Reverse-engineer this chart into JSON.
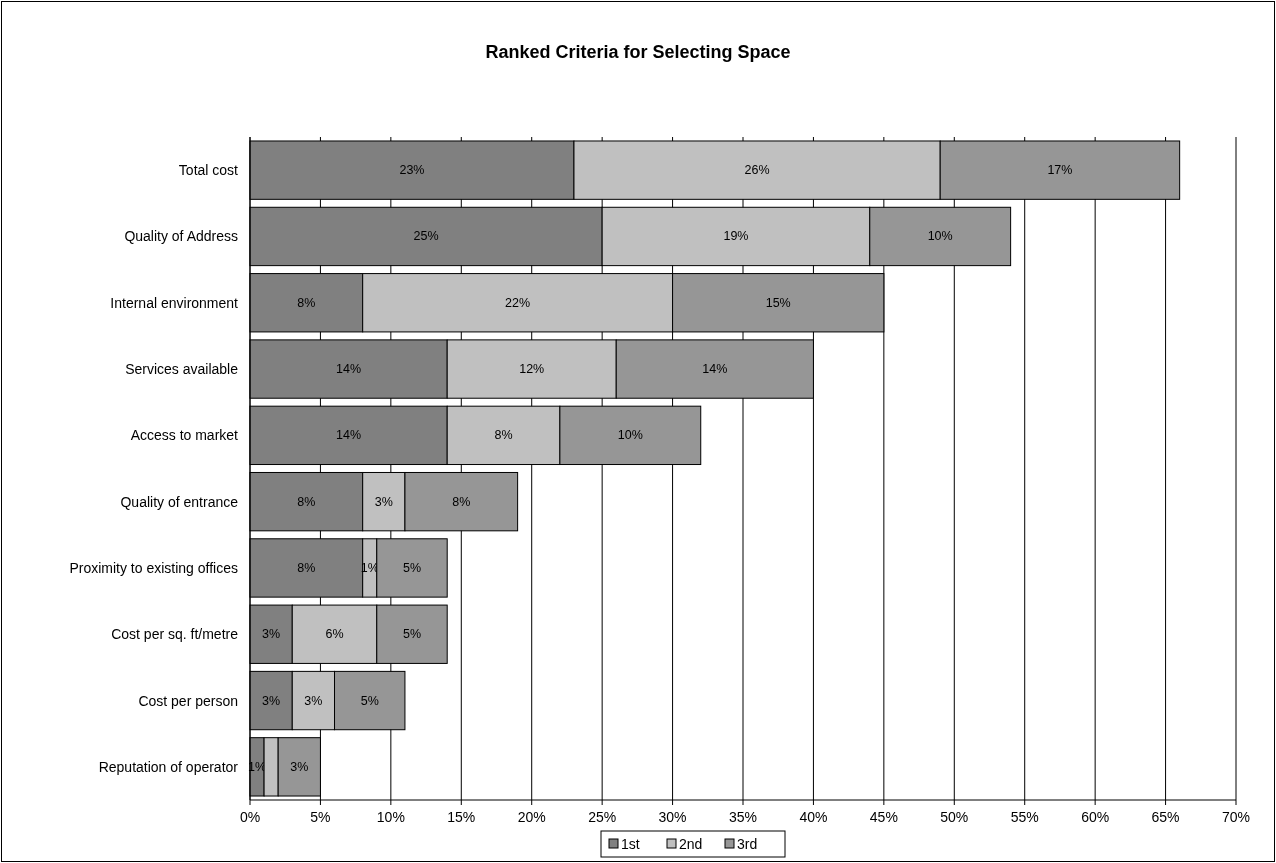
{
  "chart_data": {
    "type": "bar",
    "title": "Ranked Criteria for Selecting Space",
    "orientation": "horizontal",
    "stacked": true,
    "categories": [
      "Total cost",
      "Quality of Address",
      "Internal environment",
      "Services available",
      "Access to market",
      "Quality of entrance",
      "Proximity to existing offices",
      "Cost per sq. ft/metre",
      "Cost per person",
      "Reputation of operator"
    ],
    "series": [
      {
        "name": "1st",
        "color": "#808080",
        "values": [
          23,
          25,
          8,
          14,
          14,
          8,
          8,
          3,
          3,
          1
        ],
        "value_labels": [
          "23%",
          "25%",
          "8%",
          "14%",
          "14%",
          "8%",
          "8%",
          "3%",
          "3%",
          "1%"
        ]
      },
      {
        "name": "2nd",
        "color": "#c0c0c0",
        "values": [
          26,
          19,
          22,
          12,
          8,
          3,
          1,
          6,
          3,
          1
        ],
        "value_labels": [
          "26%",
          "19%",
          "22%",
          "12%",
          "8%",
          "3%",
          "1%",
          "6%",
          "3%",
          null
        ]
      },
      {
        "name": "3rd",
        "color": "#969696",
        "values": [
          17,
          10,
          15,
          14,
          10,
          8,
          5,
          5,
          5,
          3
        ],
        "value_labels": [
          "17%",
          "10%",
          "15%",
          "14%",
          "10%",
          "8%",
          "5%",
          "5%",
          "5%",
          "3%"
        ]
      }
    ],
    "xlim": [
      0,
      70
    ],
    "xticks": [
      {
        "value": 0,
        "label": "0%"
      },
      {
        "value": 5,
        "label": "5%"
      },
      {
        "value": 10,
        "label": "10%"
      },
      {
        "value": 15,
        "label": "15%"
      },
      {
        "value": 20,
        "label": "20%"
      },
      {
        "value": 25,
        "label": "25%"
      },
      {
        "value": 30,
        "label": "30%"
      },
      {
        "value": 35,
        "label": "35%"
      },
      {
        "value": 40,
        "label": "40%"
      },
      {
        "value": 45,
        "label": "45%"
      },
      {
        "value": 50,
        "label": "50%"
      },
      {
        "value": 55,
        "label": "55%"
      },
      {
        "value": 60,
        "label": "60%"
      },
      {
        "value": 65,
        "label": "65%"
      },
      {
        "value": 70,
        "label": "70%"
      }
    ],
    "grid": "x",
    "legend": "bottom"
  }
}
